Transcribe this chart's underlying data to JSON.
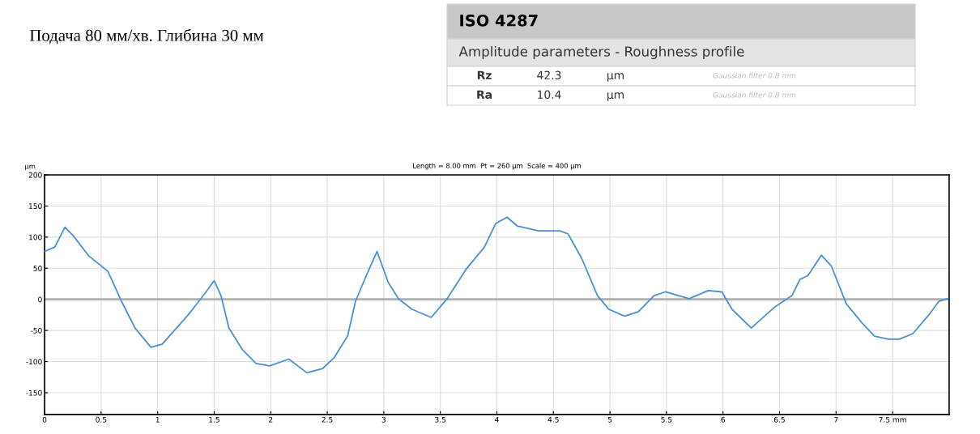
{
  "chart_data": {
    "type": "line",
    "title": "Подача 80 мм/хв. Глибина 30 мм",
    "subtitle": "Length = 8.00 mm  Pt = 260 µm  Scale = 400 µm",
    "ylabel": "µm",
    "annotations": [
      "ISO 4287",
      "Amplitude parameters - Roughness profile",
      "Rz",
      "42.3",
      "µm",
      "Gaussian filter 0.8 mm",
      "Ra",
      "10.4",
      "µm",
      "Gaussian filter 0.8 mm"
    ],
    "series": [
      {
        "color": "#4a90d9",
        "x": [
          0,
          0.09,
          0.18,
          0.25,
          0.39,
          0.56,
          0.68,
          0.8,
          0.94,
          1.04,
          1.27,
          1.42,
          1.5,
          1.56,
          1.63,
          1.75,
          1.87,
          1.99,
          2.16,
          2.32,
          2.46,
          2.56,
          2.68,
          2.75,
          2.85,
          2.94,
          3.04,
          3.13,
          3.25,
          3.42,
          3.56,
          3.73,
          3.89,
          3.99,
          4.09,
          4.18,
          4.37,
          4.56,
          4.63,
          4.75,
          4.89,
          4.99,
          5.13,
          5.25,
          5.39,
          5.49,
          5.7,
          5.87,
          5.99,
          6.08,
          6.25,
          6.46,
          6.61,
          6.68,
          6.75,
          6.87,
          6.96,
          7.09,
          7.23,
          7.34,
          7.46,
          7.56,
          7.68,
          7.82,
          7.91,
          7.99
        ],
        "values": [
          77,
          84,
          116,
          103,
          70,
          45,
          -3,
          -46,
          -77,
          -72,
          -25,
          10,
          30,
          6,
          -46,
          -81,
          -103,
          -107,
          -96,
          -118,
          -111,
          -94,
          -59,
          -3,
          40,
          77,
          27,
          1,
          -16,
          -29,
          1,
          49,
          84,
          122,
          132,
          118,
          110,
          110,
          105,
          66,
          6,
          -16,
          -27,
          -20,
          6,
          12,
          1,
          14,
          12,
          -16,
          -46,
          -12,
          6,
          32,
          38,
          71,
          53,
          -7,
          -38,
          -59,
          -64,
          -64,
          -55,
          -25,
          -3,
          1
        ]
      }
    ],
    "xlim": [
      0,
      8
    ],
    "ylim": [
      -185,
      200
    ],
    "xticks": [
      0,
      0.5,
      1,
      1.5,
      2,
      2.5,
      3,
      3.5,
      4,
      4.5,
      5,
      5.5,
      6,
      6.5,
      7,
      {
        "value": 7.5,
        "label": "7.5 mm"
      }
    ],
    "yticks": [
      -150,
      -100,
      -50,
      0,
      50,
      100,
      150,
      200
    ],
    "ref_lines": [
      {
        "axis": "y",
        "value": 0,
        "color": "#b0b0b0"
      }
    ],
    "grid": true,
    "marker": "none",
    "line_style": "solid",
    "legend": false
  }
}
